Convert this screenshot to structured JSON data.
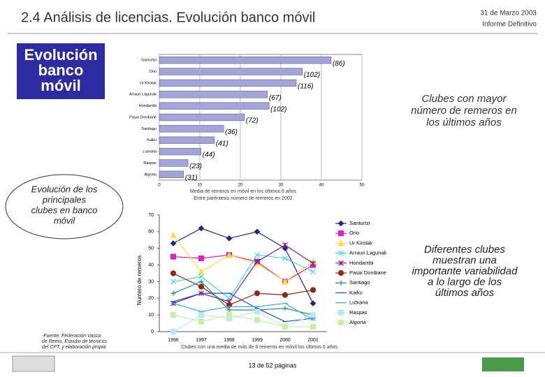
{
  "slide": {
    "title": "2.4 Análisis de licencias. Evolución banco móvil",
    "date": "31 de Marzo 2003",
    "report": "Informe Definitivo",
    "box_title": [
      "Evolución",
      "banco",
      "móvil"
    ],
    "note_top": [
      "Clubes con mayor",
      "número de remeros en",
      "los últimos años"
    ],
    "ellipse_text": [
      "Evolución de los",
      "principales",
      "clubes en banco",
      "móvil"
    ],
    "note_bottom": [
      "Diferentes clubes",
      "muestran una",
      "importante variabilidad",
      "a lo largo de los",
      "últimos años"
    ],
    "source": [
      "-Fuente: Federación Vasca",
      "de Remo, Estudio de técnicos",
      "del CPT, y elaboración propia"
    ],
    "page": "13 de 52 páginas"
  },
  "chart_data": [
    {
      "type": "hbar",
      "categories": [
        "Santurtzi",
        "Orio",
        "Ur Kirolak",
        "Arraun Lagunak",
        "Hondarribi",
        "Pasai Donibane",
        "Santiago",
        "Kaiku",
        "Lutxana",
        "Raspas",
        "Algorta"
      ],
      "values": [
        42.4,
        35.3,
        33.8,
        26.7,
        27.1,
        21,
        15.9,
        13.6,
        10.3,
        7.1,
        6
      ],
      "annotations": [
        "(86)",
        "(102)",
        "(116)",
        "(67)",
        "(102)",
        "(72)",
        "(36)",
        "(41)",
        "(44)",
        "(23)",
        "(31)"
      ],
      "color": "#a4a4dc",
      "xlim": [
        0,
        50
      ],
      "xticks": [
        0,
        10,
        20,
        30,
        40,
        50
      ],
      "grid": true,
      "xlabel": [
        "Media de remeros en móvil en los últimos 6 años",
        "Entre paréntesis número de remeros en 2002"
      ]
    },
    {
      "type": "line",
      "categories": [
        "1996",
        "1997",
        "1998",
        "1999",
        "2000",
        "2001"
      ],
      "ylim": [
        0,
        70
      ],
      "yticks": [
        0,
        10,
        20,
        30,
        40,
        50,
        60,
        70
      ],
      "ylabel": "Número de remeros",
      "xlabel": "Clubes con una media de más de 6 remeros en móvil los últimos 6 años.",
      "series": [
        {
          "name": "Santurtzi",
          "color": "#1f2a7a",
          "marker": "diamond",
          "values": [
            53,
            62,
            56,
            60,
            50,
            17
          ]
        },
        {
          "name": "Orio",
          "color": "#e020c0",
          "marker": "square",
          "values": [
            45,
            44,
            46,
            42,
            30,
            40
          ]
        },
        {
          "name": "Ur Kirolak",
          "color": "#f0e040",
          "marker": "triangle",
          "values": [
            58,
            36,
            46,
            41,
            30,
            42
          ]
        },
        {
          "name": "Arraun Lagunak",
          "color": "#40d8e8",
          "marker": "x",
          "values": [
            30,
            33,
            20,
            46,
            44,
            36
          ]
        },
        {
          "name": "Hondarribi",
          "color": "#7a2090",
          "marker": "star",
          "values": [
            17,
            23,
            18,
            42,
            52,
            41
          ]
        },
        {
          "name": "Pasai Donibane",
          "color": "#8a2a10",
          "marker": "circle",
          "values": [
            35,
            27,
            16,
            23,
            22,
            25
          ]
        },
        {
          "name": "Santiago",
          "color": "#208a80",
          "marker": "plus",
          "values": [
            23,
            30,
            13,
            13,
            14,
            10
          ]
        },
        {
          "name": "Kaiku",
          "color": "#2050c8",
          "marker": "dash",
          "values": [
            18,
            23,
            23,
            14,
            6,
            8
          ]
        },
        {
          "name": "Lutxana",
          "color": "#40a8d8",
          "marker": "dash",
          "values": [
            17,
            12,
            15,
            15,
            17,
            7
          ]
        },
        {
          "name": "Raspas",
          "color": "#b8e8f8",
          "marker": "square",
          "values": [
            0,
            10,
            8,
            12,
            3,
            10
          ]
        },
        {
          "name": "Algorta",
          "color": "#c8f0a0",
          "marker": "square",
          "values": [
            10,
            6,
            10,
            7,
            3,
            3
          ]
        }
      ]
    }
  ]
}
